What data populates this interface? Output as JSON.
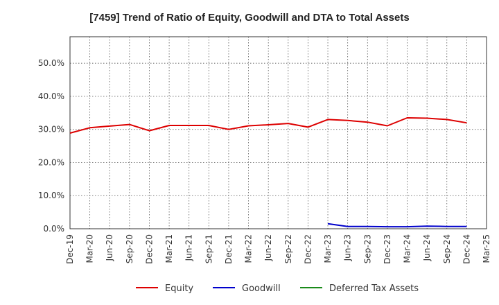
{
  "chart_data": {
    "type": "line",
    "title": "[7459]  Trend of Ratio of Equity, Goodwill and DTA to Total Assets",
    "xlabel": "",
    "ylabel": "",
    "ylim": [
      0,
      58
    ],
    "yticks": [
      0,
      10,
      20,
      30,
      40,
      50
    ],
    "ytick_labels": [
      "0.0%",
      "10.0%",
      "20.0%",
      "30.0%",
      "40.0%",
      "50.0%"
    ],
    "x_tick_labels": [
      "Dec-19",
      "Mar-20",
      "Jun-20",
      "Sep-20",
      "Dec-20",
      "Mar-21",
      "Jun-21",
      "Sep-21",
      "Dec-21",
      "Mar-22",
      "Jun-22",
      "Sep-22",
      "Dec-22",
      "Mar-23",
      "Jun-23",
      "Sep-23",
      "Dec-23",
      "Mar-24",
      "Jun-24",
      "Sep-24",
      "Dec-24",
      "Mar-25"
    ],
    "grid": true,
    "legend_position": "bottom",
    "series": [
      {
        "name": "Equity",
        "color": "#dd0000",
        "values": [
          28.9,
          30.5,
          31.0,
          31.5,
          29.6,
          31.2,
          31.2,
          31.2,
          30.0,
          31.1,
          31.4,
          31.8,
          30.7,
          33.0,
          32.7,
          32.2,
          31.1,
          33.5,
          33.4,
          33.0,
          32.0,
          null
        ]
      },
      {
        "name": "Goodwill",
        "color": "#0000cc",
        "values": [
          null,
          null,
          null,
          null,
          null,
          null,
          null,
          null,
          null,
          null,
          null,
          null,
          null,
          1.5,
          0.7,
          0.7,
          0.6,
          0.6,
          0.8,
          0.7,
          0.7,
          null
        ]
      },
      {
        "name": "Deferred Tax Assets",
        "color": "#1a8a1a",
        "values": [
          null,
          null,
          null,
          null,
          null,
          null,
          null,
          null,
          null,
          null,
          null,
          null,
          null,
          null,
          null,
          null,
          null,
          null,
          null,
          null,
          null,
          null
        ]
      }
    ]
  }
}
